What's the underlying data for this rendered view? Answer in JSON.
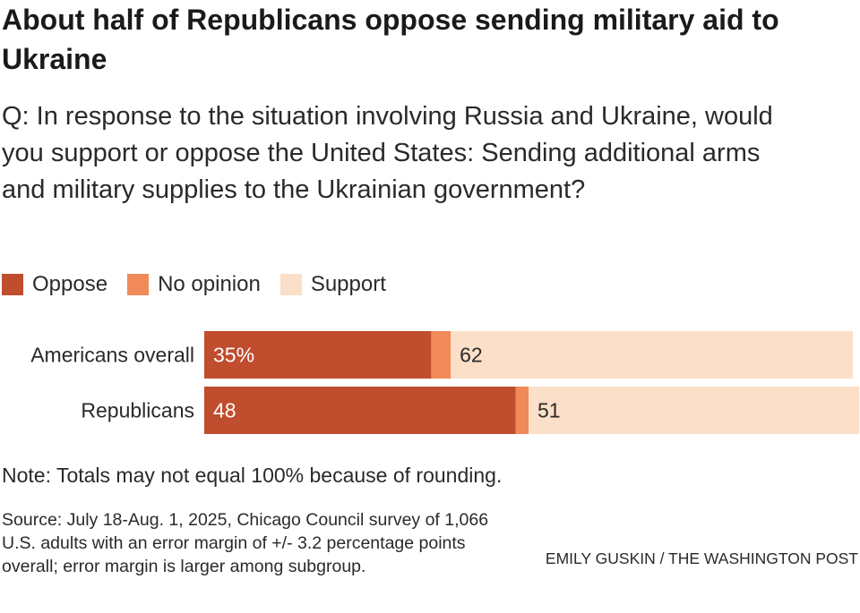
{
  "title": "About half of Republicans oppose sending military aid to Ukraine",
  "subtitle": "Q: In response to the situation involving Russia and Ukraine, would you support or oppose the United States: Sending additional arms and military supplies to the Ukrainian government?",
  "legend": {
    "oppose": "Oppose",
    "no_opinion": "No opinion",
    "support": "Support"
  },
  "colors": {
    "oppose": "#c04d2e",
    "no_opinion": "#f08a58",
    "support": "#fbdfc8"
  },
  "chart_data": {
    "type": "bar",
    "orientation": "horizontal",
    "stacked": true,
    "title": "About half of Republicans oppose sending military aid to Ukraine",
    "xlim": [
      0,
      100
    ],
    "categories": [
      "Americans overall",
      "Republicans"
    ],
    "series": [
      {
        "name": "Oppose",
        "values": [
          35,
          48
        ]
      },
      {
        "name": "No opinion",
        "values": [
          3,
          2
        ]
      },
      {
        "name": "Support",
        "values": [
          62,
          51
        ]
      }
    ],
    "data_labels": [
      {
        "oppose": "35%",
        "support": "62"
      },
      {
        "oppose": "48",
        "support": "51"
      }
    ]
  },
  "note": "Note: Totals may not equal 100% because of rounding.",
  "source": "Source: July 18-Aug. 1, 2025, Chicago Council survey of 1,066 U.S. adults with an error margin of +/- 3.2 percentage points overall; error margin is larger among subgroup.",
  "credit": "EMILY GUSKIN / THE WASHINGTON POST"
}
